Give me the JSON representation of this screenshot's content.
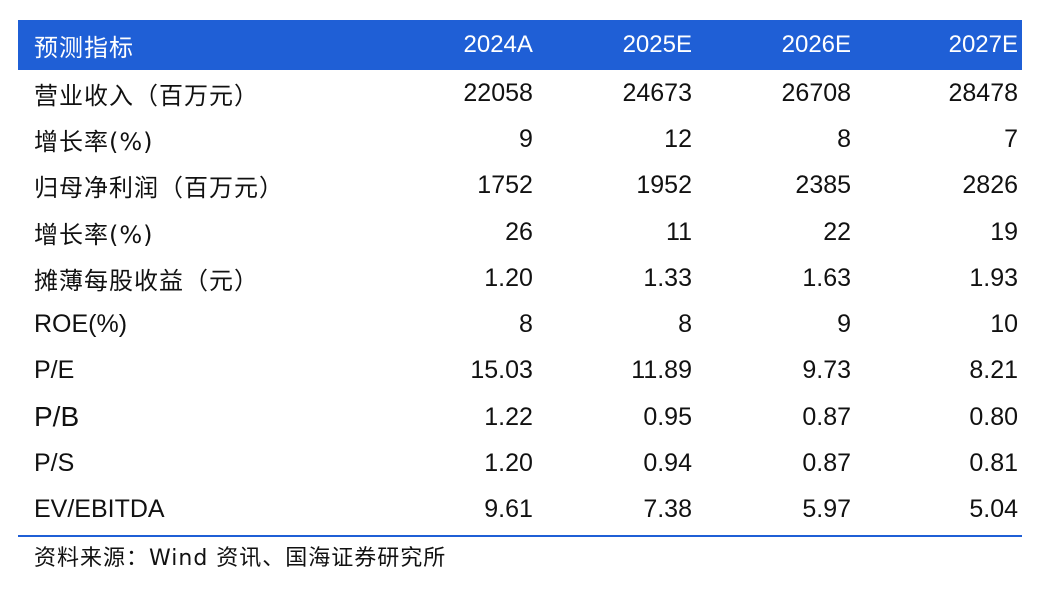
{
  "table": {
    "header": {
      "label": "预测指标",
      "years": [
        "2024A",
        "2025E",
        "2026E",
        "2027E"
      ]
    },
    "rows": [
      {
        "label": "营业收入（百万元）",
        "values": [
          "22058",
          "24673",
          "26708",
          "28478"
        ]
      },
      {
        "label": "增长率(%)",
        "values": [
          "9",
          "12",
          "8",
          "7"
        ]
      },
      {
        "label": "归母净利润（百万元）",
        "values": [
          "1752",
          "1952",
          "2385",
          "2826"
        ]
      },
      {
        "label": "增长率(%)",
        "values": [
          "26",
          "11",
          "22",
          "19"
        ]
      },
      {
        "label": "摊薄每股收益（元）",
        "values": [
          "1.20",
          "1.33",
          "1.63",
          "1.93"
        ]
      },
      {
        "label": "ROE(%)",
        "values": [
          "8",
          "8",
          "9",
          "10"
        ]
      },
      {
        "label": "P/E",
        "values": [
          "15.03",
          "11.89",
          "9.73",
          "8.21"
        ]
      },
      {
        "label": "P/B",
        "values": [
          "1.22",
          "0.95",
          "0.87",
          "0.80"
        ]
      },
      {
        "label": "P/S",
        "values": [
          "1.20",
          "0.94",
          "0.87",
          "0.81"
        ]
      },
      {
        "label": "EV/EBITDA",
        "values": [
          "9.61",
          "7.38",
          "5.97",
          "5.04"
        ]
      }
    ]
  },
  "source": "资料来源：Wind 资讯、国海证券研究所",
  "colors": {
    "header_bg": "#1f5fd6",
    "header_text": "#ffffff",
    "rule": "#1f5fd6"
  }
}
